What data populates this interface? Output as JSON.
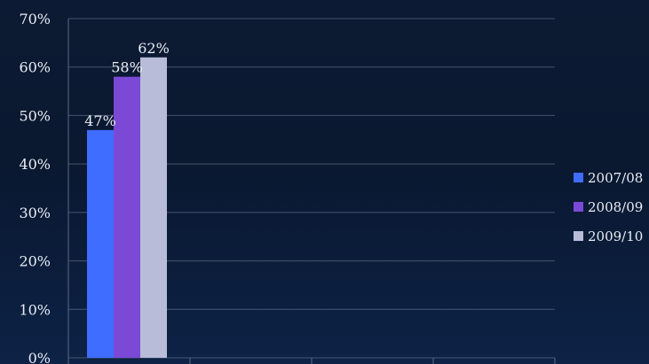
{
  "chart_data": {
    "type": "bar",
    "title": "",
    "xlabel": "",
    "ylabel": "",
    "ylim": [
      0,
      70
    ],
    "yticks": [
      "0%",
      "10%",
      "20%",
      "30%",
      "40%",
      "50%",
      "60%",
      "70%"
    ],
    "grid": true,
    "legend_position": "right",
    "categories": [
      ""
    ],
    "series": [
      {
        "name": "2007/08",
        "values": [
          47
        ],
        "label": "47%",
        "color": "#3f6dff"
      },
      {
        "name": "2008/09",
        "values": [
          58
        ],
        "label": "58%",
        "color": "#7b49d6"
      },
      {
        "name": "2009/10",
        "values": [
          62
        ],
        "label": "62%",
        "color": "#b8bcd8"
      }
    ]
  },
  "legend": {
    "items": [
      {
        "label": "2007/08",
        "color": "#3f6dff"
      },
      {
        "label": "2008/09",
        "color": "#7b49d6"
      },
      {
        "label": "2009/10",
        "color": "#b8bcd8"
      }
    ]
  }
}
